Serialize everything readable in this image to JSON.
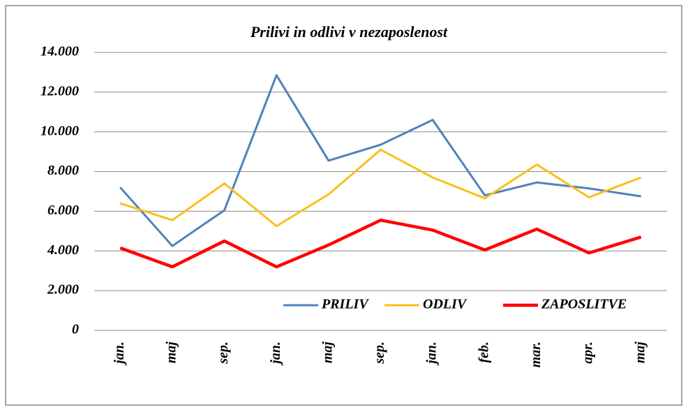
{
  "chart_data": {
    "type": "line",
    "title": "Prilivi in odlivi v nezaposlenost",
    "categories": [
      "jan.",
      "maj",
      "sep.",
      "jan.",
      "maj",
      "sep.",
      "jan.",
      "feb.",
      "mar.",
      "apr.",
      "maj"
    ],
    "series": [
      {
        "name": "PRILIV",
        "color": "#4f81bd",
        "values": [
          7200,
          4250,
          6050,
          12850,
          8550,
          9350,
          10600,
          6800,
          7450,
          7150,
          6750
        ]
      },
      {
        "name": "ODLIV",
        "color": "#f9c01a",
        "values": [
          6400,
          5550,
          7400,
          5250,
          6850,
          9100,
          7700,
          6650,
          8350,
          6700,
          7700
        ]
      },
      {
        "name": "ZAPOSLITVE",
        "color": "#ff0000",
        "values": [
          4150,
          3200,
          4500,
          3200,
          4300,
          5550,
          5050,
          4050,
          5100,
          3900,
          4700
        ]
      }
    ],
    "ylim": [
      0,
      14000
    ],
    "yticks": [
      0,
      {
        "value": 2000,
        "label": "2.000"
      },
      {
        "value": 4000,
        "label": "4.000"
      },
      {
        "value": 6000,
        "label": "6.000"
      },
      {
        "value": 8000,
        "label": "8.000"
      },
      {
        "value": 10000,
        "label": "10.000"
      },
      {
        "value": 12000,
        "label": "12.000"
      },
      {
        "value": 14000,
        "label": "14.000"
      }
    ],
    "grid": true,
    "legend": "lower right"
  }
}
